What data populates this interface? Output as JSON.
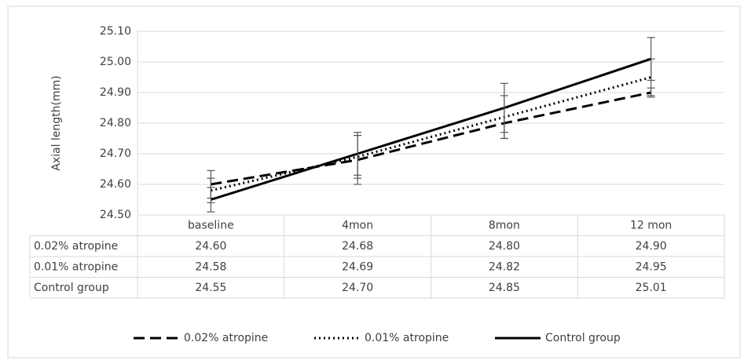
{
  "chart_data": {
    "type": "line",
    "y_label": "Axial length(mm)",
    "categories": [
      "baseline",
      "4mon",
      "8mon",
      "12 mon"
    ],
    "series": [
      {
        "name": "0.02% atropine",
        "color": "#000000",
        "dash": "dashed",
        "values": [
          24.6,
          24.68,
          24.8,
          24.9
        ],
        "value_labels": [
          "24.60",
          "24.68",
          "24.80",
          "24.90"
        ],
        "errors": [
          0.045,
          0.08,
          0.05,
          0.015
        ]
      },
      {
        "name": "0.01% atropine",
        "color": "#000000",
        "dash": "dotted",
        "values": [
          24.58,
          24.69,
          24.82,
          24.95
        ],
        "value_labels": [
          "24.58",
          "24.69",
          "24.82",
          "24.95"
        ],
        "errors": [
          0.04,
          0.07,
          0.07,
          0.06
        ]
      },
      {
        "name": "Control group",
        "color": "#000000",
        "dash": "solid",
        "values": [
          24.55,
          24.7,
          24.85,
          25.01
        ],
        "value_labels": [
          "24.55",
          "24.70",
          "24.85",
          "25.01"
        ],
        "errors": [
          0.04,
          0.07,
          0.08,
          0.07
        ]
      }
    ],
    "ylim": [
      24.5,
      25.1
    ],
    "yticks": [
      {
        "value": 24.5,
        "label": "24.50"
      },
      {
        "value": 24.6,
        "label": "24.60"
      },
      {
        "value": 24.7,
        "label": "24.70"
      },
      {
        "value": 24.8,
        "label": "24.80"
      },
      {
        "value": 24.9,
        "label": "24.90"
      },
      {
        "value": 25.0,
        "label": "25.00"
      },
      {
        "value": 25.1,
        "label": "25.10"
      }
    ],
    "grid": true,
    "legend": "bottom"
  }
}
